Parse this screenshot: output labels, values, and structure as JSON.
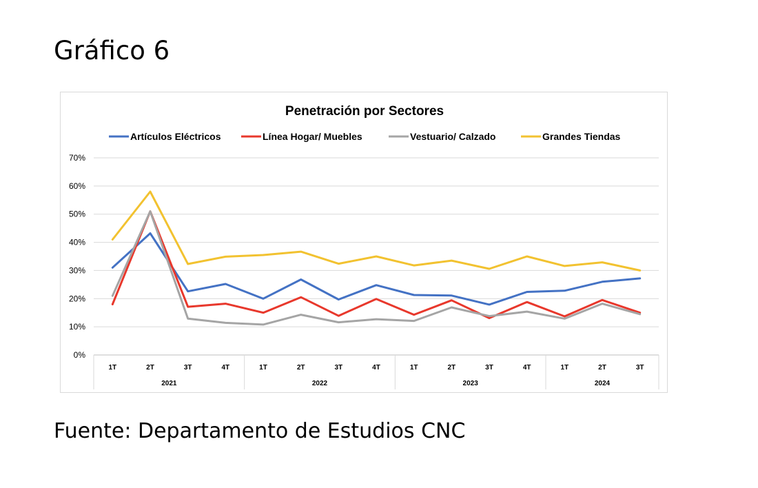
{
  "page": {
    "heading": "Gráfico 6",
    "source": "Fuente: Departamento de Estudios CNC"
  },
  "chart_data": {
    "type": "line",
    "title": "Penetración por Sectores",
    "xlabel": "",
    "ylabel": "",
    "ylim": [
      0,
      70
    ],
    "y_ticks": [
      0,
      10,
      20,
      30,
      40,
      50,
      60,
      70
    ],
    "y_tick_suffix": "%",
    "grid": true,
    "legend_position": "top",
    "categories": [
      "1T",
      "2T",
      "3T",
      "4T",
      "1T",
      "2T",
      "3T",
      "4T",
      "1T",
      "2T",
      "3T",
      "4T",
      "1T",
      "2T",
      "3T"
    ],
    "groups": [
      {
        "label": "2021",
        "count": 4
      },
      {
        "label": "2022",
        "count": 4
      },
      {
        "label": "2023",
        "count": 4
      },
      {
        "label": "2024",
        "count": 3
      }
    ],
    "series": [
      {
        "name": "Artículos Eléctricos",
        "color": "#4472c4",
        "values": [
          31,
          43.2,
          22.6,
          25.2,
          20,
          26.8,
          19.7,
          24.8,
          21.3,
          21.1,
          17.9,
          22.4,
          22.8,
          26,
          27.2
        ]
      },
      {
        "name": "Línea Hogar/ Muebles",
        "color": "#e8382c",
        "values": [
          18,
          51,
          17.1,
          18.2,
          15,
          20.5,
          13.9,
          19.9,
          14.3,
          19.4,
          13.1,
          18.8,
          13.7,
          19.5,
          15
        ]
      },
      {
        "name": "Vestuario/ Calzado",
        "color": "#a5a5a5",
        "values": [
          21,
          51,
          12.9,
          11.4,
          10.8,
          14.3,
          11.6,
          12.7,
          12.1,
          16.9,
          13.8,
          15.4,
          12.9,
          18.2,
          14.5
        ]
      },
      {
        "name": "Grandes Tiendas",
        "color": "#f2c230",
        "values": [
          41,
          58,
          32.3,
          34.9,
          35.5,
          36.7,
          32.4,
          35,
          31.8,
          33.5,
          30.6,
          35,
          31.6,
          32.9,
          30
        ]
      }
    ]
  }
}
